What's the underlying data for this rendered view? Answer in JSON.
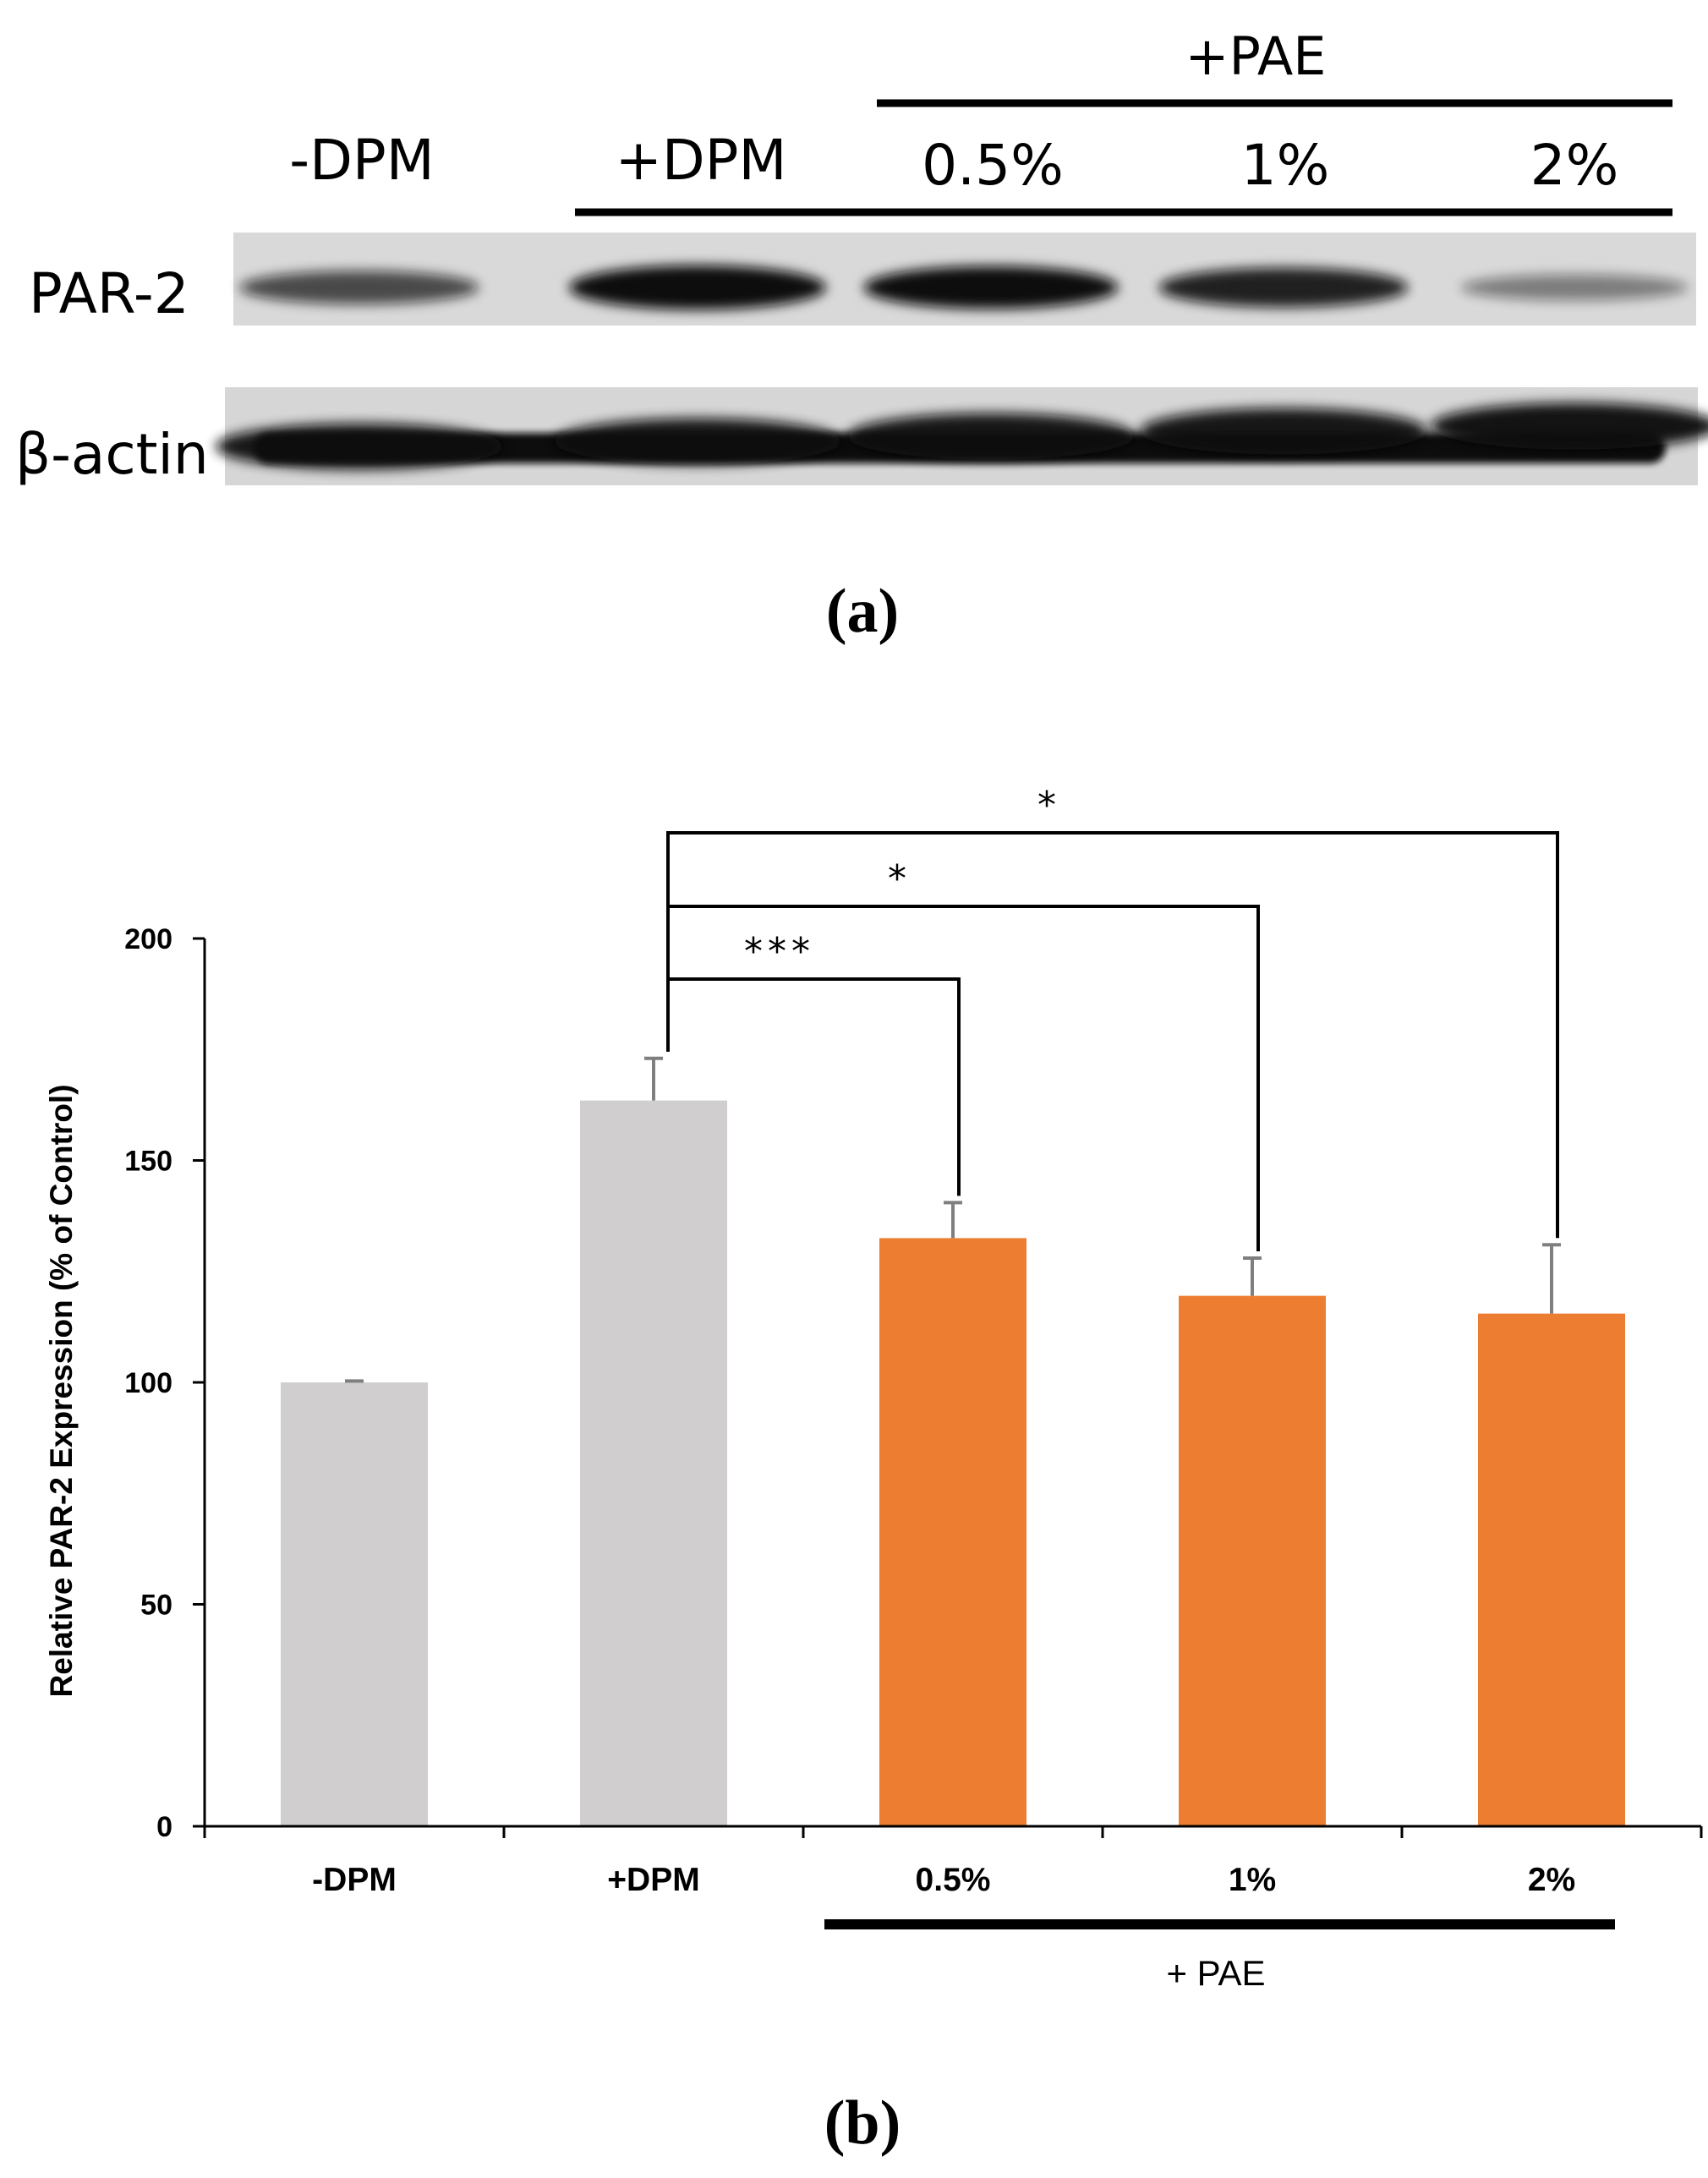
{
  "panel_a": {
    "panel_label": "(a)",
    "lane_labels": [
      "-DPM",
      "+DPM",
      "0.5%",
      "1%",
      "2%"
    ],
    "pae_group_label": "+PAE",
    "row_labels": {
      "par2": "PAR-2",
      "actin": "β-actin"
    },
    "par2_band_intensity": [
      0.55,
      0.9,
      0.85,
      0.75,
      0.3
    ],
    "actin_band_intensity": [
      0.95,
      0.95,
      0.95,
      0.95,
      0.97
    ]
  },
  "panel_b": {
    "panel_label": "(b)",
    "pae_group_label": "+ PAE"
  },
  "colors": {
    "control_bar": "#d0cece",
    "pae_bar": "#ed7d31",
    "error_bar": "#7f7f7f",
    "axis": "#000000",
    "blot_background": "#d8d8d8",
    "band": "#111111"
  },
  "chart_data": {
    "type": "bar",
    "categories": [
      "-DPM",
      "+DPM",
      "0.5%",
      "1%",
      "2%"
    ],
    "values": [
      100,
      163.5,
      132.5,
      119.5,
      115.5
    ],
    "errors": [
      0.3,
      9.5,
      8,
      8.5,
      15.5
    ],
    "bar_colors": [
      "#d0cece",
      "#d0cece",
      "#ed7d31",
      "#ed7d31",
      "#ed7d31"
    ],
    "ylabel": "Relative PAR-2 Expression (% of Control)",
    "xlabel": "",
    "ylim": [
      0,
      200
    ],
    "yticks": [
      0,
      50,
      100,
      150,
      200
    ],
    "grid": false,
    "significance": [
      {
        "from": "+DPM",
        "to": "0.5%",
        "label": "***"
      },
      {
        "from": "+DPM",
        "to": "1%",
        "label": "*"
      },
      {
        "from": "+DPM",
        "to": "2%",
        "label": "*"
      }
    ]
  }
}
